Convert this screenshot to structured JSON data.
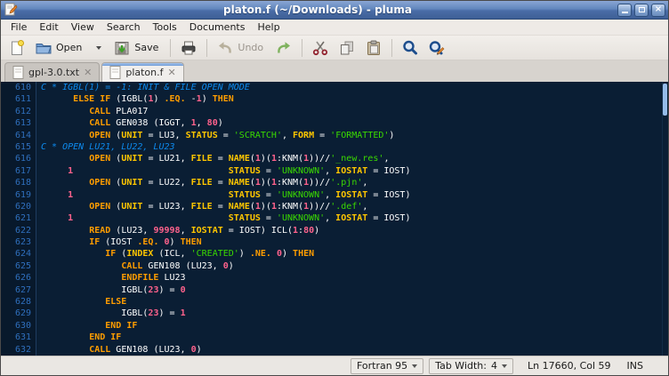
{
  "window": {
    "title": "platon.f (~/Downloads) - pluma"
  },
  "menu": {
    "items": [
      "File",
      "Edit",
      "View",
      "Search",
      "Tools",
      "Documents",
      "Help"
    ]
  },
  "toolbar": {
    "open_label": "Open",
    "save_label": "Save",
    "undo_label": "Undo",
    "icons": [
      "new-document-icon",
      "open-folder-icon",
      "open-dropdown-chevron",
      "save-icon",
      "print-icon",
      "undo-icon",
      "redo-icon",
      "cut-icon",
      "copy-icon",
      "paste-icon",
      "find-icon",
      "replace-icon"
    ]
  },
  "tabs": [
    {
      "label": "gpl-3.0.txt",
      "active": false
    },
    {
      "label": "platon.f",
      "active": true
    }
  ],
  "statusbar": {
    "language": "Fortran 95",
    "tab_width_label": "Tab Width:",
    "tab_width_value": "4",
    "position": "Ln 17660, Col 59",
    "insert_mode": "INS"
  },
  "colors": {
    "editor_bg": "#0a1e34",
    "gutter_bg": "#08192c",
    "gutter_fg": "#2f6fbd",
    "gutter_border": "#1e3c5f",
    "comment": "#0d8aee",
    "keyword": "#ff9d00",
    "specifier": "#ffc600",
    "number": "#ff628c",
    "string": "#3ad900",
    "plain": "#ffffff",
    "scroll_thumb": "#96bce9",
    "tab_active_strip": "#6f9bd6"
  },
  "editor": {
    "lines": [
      {
        "n": "610",
        "t": [
          [
            "c",
            "C * IGBL(1) = -1: INIT & FILE OPEN MODE"
          ]
        ]
      },
      {
        "n": "611",
        "t": [
          [
            "p",
            "      "
          ],
          [
            "k",
            "ELSE IF"
          ],
          [
            "p",
            " (IGBL("
          ],
          [
            "n",
            "1"
          ],
          [
            "p",
            ") "
          ],
          [
            "k",
            ".EQ."
          ],
          [
            "p",
            " -"
          ],
          [
            "n",
            "1"
          ],
          [
            "p",
            ") "
          ],
          [
            "k",
            "THEN"
          ]
        ]
      },
      {
        "n": "612",
        "t": [
          [
            "p",
            "         "
          ],
          [
            "k",
            "CALL"
          ],
          [
            "p",
            " PLA017"
          ]
        ]
      },
      {
        "n": "613",
        "t": [
          [
            "p",
            "         "
          ],
          [
            "k",
            "CALL"
          ],
          [
            "p",
            " GEN038 (IGGT, "
          ],
          [
            "n",
            "1"
          ],
          [
            "p",
            ", "
          ],
          [
            "n",
            "80"
          ],
          [
            "p",
            ")"
          ]
        ]
      },
      {
        "n": "614",
        "t": [
          [
            "p",
            "         "
          ],
          [
            "k",
            "OPEN"
          ],
          [
            "p",
            " ("
          ],
          [
            "s",
            "UNIT"
          ],
          [
            "p",
            " = LU3, "
          ],
          [
            "s",
            "STATUS"
          ],
          [
            "p",
            " = "
          ],
          [
            "t",
            "'SCRATCH'"
          ],
          [
            "p",
            ", "
          ],
          [
            "s",
            "FORM"
          ],
          [
            "p",
            " = "
          ],
          [
            "t",
            "'FORMATTED'"
          ],
          [
            "p",
            ")"
          ]
        ]
      },
      {
        "n": "615",
        "t": [
          [
            "c",
            "C * OPEN LU21, LU22, LU23"
          ]
        ]
      },
      {
        "n": "616",
        "t": [
          [
            "p",
            "         "
          ],
          [
            "k",
            "OPEN"
          ],
          [
            "p",
            " ("
          ],
          [
            "s",
            "UNIT"
          ],
          [
            "p",
            " = LU21, "
          ],
          [
            "s",
            "FILE"
          ],
          [
            "p",
            " = "
          ],
          [
            "s",
            "NAME"
          ],
          [
            "p",
            "("
          ],
          [
            "n",
            "1"
          ],
          [
            "p",
            ")("
          ],
          [
            "n",
            "1"
          ],
          [
            "p",
            ":KNM("
          ],
          [
            "n",
            "1"
          ],
          [
            "p",
            "))//"
          ],
          [
            "t",
            "'_new.res'"
          ],
          [
            "p",
            ","
          ]
        ]
      },
      {
        "n": "617",
        "t": [
          [
            "p",
            "     "
          ],
          [
            "n",
            "1"
          ],
          [
            "p",
            "                             "
          ],
          [
            "s",
            "STATUS"
          ],
          [
            "p",
            " = "
          ],
          [
            "t",
            "'UNKNOWN'"
          ],
          [
            "p",
            ", "
          ],
          [
            "s",
            "IOSTAT"
          ],
          [
            "p",
            " = IOST)"
          ]
        ]
      },
      {
        "n": "618",
        "t": [
          [
            "p",
            "         "
          ],
          [
            "k",
            "OPEN"
          ],
          [
            "p",
            " ("
          ],
          [
            "s",
            "UNIT"
          ],
          [
            "p",
            " = LU22, "
          ],
          [
            "s",
            "FILE"
          ],
          [
            "p",
            " = "
          ],
          [
            "s",
            "NAME"
          ],
          [
            "p",
            "("
          ],
          [
            "n",
            "1"
          ],
          [
            "p",
            ")("
          ],
          [
            "n",
            "1"
          ],
          [
            "p",
            ":KNM("
          ],
          [
            "n",
            "1"
          ],
          [
            "p",
            "))//"
          ],
          [
            "t",
            "'.pjn'"
          ],
          [
            "p",
            ","
          ]
        ]
      },
      {
        "n": "619",
        "t": [
          [
            "p",
            "     "
          ],
          [
            "n",
            "1"
          ],
          [
            "p",
            "                             "
          ],
          [
            "s",
            "STATUS"
          ],
          [
            "p",
            " = "
          ],
          [
            "t",
            "'UNKNOWN'"
          ],
          [
            "p",
            ", "
          ],
          [
            "s",
            "IOSTAT"
          ],
          [
            "p",
            " = IOST)"
          ]
        ]
      },
      {
        "n": "620",
        "t": [
          [
            "p",
            "         "
          ],
          [
            "k",
            "OPEN"
          ],
          [
            "p",
            " ("
          ],
          [
            "s",
            "UNIT"
          ],
          [
            "p",
            " = LU23, "
          ],
          [
            "s",
            "FILE"
          ],
          [
            "p",
            " = "
          ],
          [
            "s",
            "NAME"
          ],
          [
            "p",
            "("
          ],
          [
            "n",
            "1"
          ],
          [
            "p",
            ")("
          ],
          [
            "n",
            "1"
          ],
          [
            "p",
            ":KNM("
          ],
          [
            "n",
            "1"
          ],
          [
            "p",
            "))//"
          ],
          [
            "t",
            "'.def'"
          ],
          [
            "p",
            ","
          ]
        ]
      },
      {
        "n": "621",
        "t": [
          [
            "p",
            "     "
          ],
          [
            "n",
            "1"
          ],
          [
            "p",
            "                             "
          ],
          [
            "s",
            "STATUS"
          ],
          [
            "p",
            " = "
          ],
          [
            "t",
            "'UNKNOWN'"
          ],
          [
            "p",
            ", "
          ],
          [
            "s",
            "IOSTAT"
          ],
          [
            "p",
            " = IOST)"
          ]
        ]
      },
      {
        "n": "622",
        "t": [
          [
            "p",
            "         "
          ],
          [
            "k",
            "READ"
          ],
          [
            "p",
            " (LU23, "
          ],
          [
            "n",
            "99998"
          ],
          [
            "p",
            ", "
          ],
          [
            "s",
            "IOSTAT"
          ],
          [
            "p",
            " = IOST) ICL("
          ],
          [
            "n",
            "1"
          ],
          [
            "p",
            ":"
          ],
          [
            "n",
            "80"
          ],
          [
            "p",
            ")"
          ]
        ]
      },
      {
        "n": "623",
        "t": [
          [
            "p",
            "         "
          ],
          [
            "k",
            "IF"
          ],
          [
            "p",
            " (IOST "
          ],
          [
            "k",
            ".EQ."
          ],
          [
            "p",
            " "
          ],
          [
            "n",
            "0"
          ],
          [
            "p",
            ") "
          ],
          [
            "k",
            "THEN"
          ]
        ]
      },
      {
        "n": "624",
        "t": [
          [
            "p",
            "            "
          ],
          [
            "k",
            "IF"
          ],
          [
            "p",
            " ("
          ],
          [
            "s",
            "INDEX"
          ],
          [
            "p",
            " (ICL, "
          ],
          [
            "t",
            "'CREATED'"
          ],
          [
            "p",
            ") "
          ],
          [
            "k",
            ".NE."
          ],
          [
            "p",
            " "
          ],
          [
            "n",
            "0"
          ],
          [
            "p",
            ") "
          ],
          [
            "k",
            "THEN"
          ]
        ]
      },
      {
        "n": "625",
        "t": [
          [
            "p",
            "               "
          ],
          [
            "k",
            "CALL"
          ],
          [
            "p",
            " GEN108 (LU23, "
          ],
          [
            "n",
            "0"
          ],
          [
            "p",
            ")"
          ]
        ]
      },
      {
        "n": "626",
        "t": [
          [
            "p",
            "               "
          ],
          [
            "k",
            "ENDFILE"
          ],
          [
            "p",
            " LU23"
          ]
        ]
      },
      {
        "n": "627",
        "t": [
          [
            "p",
            "               IGBL("
          ],
          [
            "n",
            "23"
          ],
          [
            "p",
            ") = "
          ],
          [
            "n",
            "0"
          ]
        ]
      },
      {
        "n": "628",
        "t": [
          [
            "p",
            "            "
          ],
          [
            "k",
            "ELSE"
          ]
        ]
      },
      {
        "n": "629",
        "t": [
          [
            "p",
            "               IGBL("
          ],
          [
            "n",
            "23"
          ],
          [
            "p",
            ") = "
          ],
          [
            "n",
            "1"
          ]
        ]
      },
      {
        "n": "630",
        "t": [
          [
            "p",
            "            "
          ],
          [
            "k",
            "END IF"
          ]
        ]
      },
      {
        "n": "631",
        "t": [
          [
            "p",
            "         "
          ],
          [
            "k",
            "END IF"
          ]
        ]
      },
      {
        "n": "632",
        "t": [
          [
            "p",
            "         "
          ],
          [
            "k",
            "CALL"
          ],
          [
            "p",
            " GEN108 (LU23, "
          ],
          [
            "n",
            "0"
          ],
          [
            "p",
            ")"
          ]
        ]
      }
    ]
  }
}
